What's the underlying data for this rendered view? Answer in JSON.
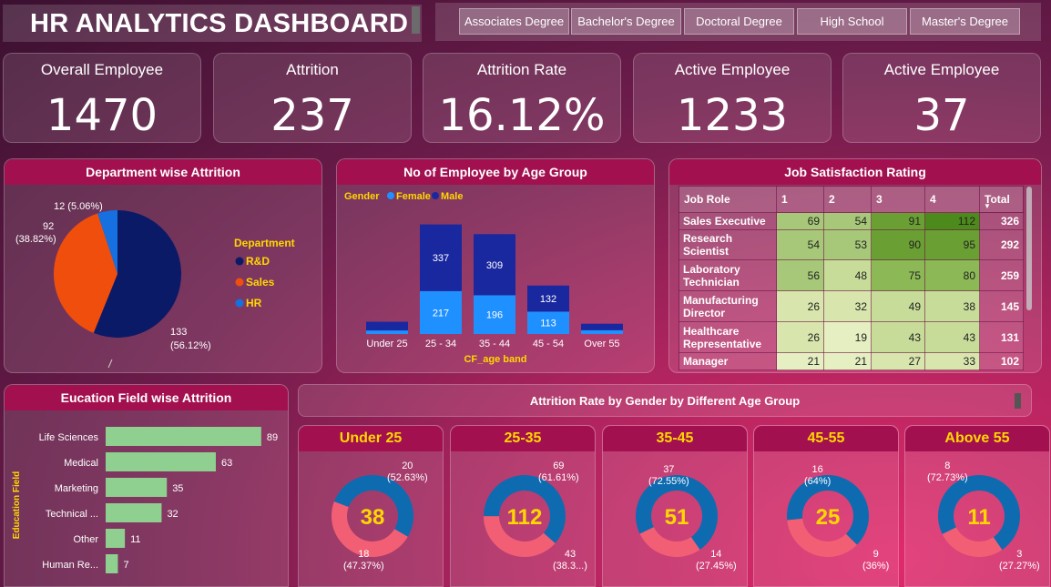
{
  "header": {
    "title": "HR ANALYTICS DASHBOARD",
    "education_filters": [
      "Associates Degree",
      "Bachelor's Degree",
      "Doctoral Degree",
      "High School",
      "Master's Degree"
    ]
  },
  "kpis": [
    {
      "label": "Overall Employee",
      "value": "1470"
    },
    {
      "label": "Attrition",
      "value": "237"
    },
    {
      "label": "Attrition Rate",
      "value": "16.12%"
    },
    {
      "label": "Active Employee",
      "value": "1233"
    },
    {
      "label": "Active Employee",
      "value": "37"
    }
  ],
  "colors": {
    "rd": "#0b1a66",
    "sales": "#f04e0c",
    "hr": "#1670e0",
    "female": "#1e90ff",
    "male": "#1a28a0",
    "donut_blue": "#0f6bb0",
    "donut_pink": "#f25f75",
    "accent_yellow": "#ffd700",
    "edu_bar": "#8fcf8f"
  },
  "dept_pie": {
    "title": "Department wise Attrition",
    "legend_title": "Department",
    "labels": {
      "hr": "12 (5.06%)",
      "sales_count": "92",
      "sales_pct": "(38.82%)",
      "rd_count": "133",
      "rd_pct": "(56.12%)"
    }
  },
  "age_chart": {
    "title": "No of Employee by Age Group",
    "legend_title": "Gender",
    "legend_female": "Female",
    "legend_male": "Male",
    "xlabel": "CF_age band"
  },
  "job_satisfaction": {
    "title": "Job Satisfaction Rating",
    "headers": [
      "Job Role",
      "1",
      "2",
      "3",
      "4",
      "Total"
    ]
  },
  "edu_chart": {
    "title": "Eucation Field wise Attrition",
    "ylabel": "Education Field"
  },
  "gender_age": {
    "title": "Attrition Rate by Gender by Different Age Group"
  },
  "donuts": [
    {
      "title": "Under 25",
      "center": "38",
      "top": "20",
      "top_pct": "(52.63%)",
      "bottom": "18",
      "bottom_pct": "(47.37%)"
    },
    {
      "title": "25-35",
      "center": "112",
      "top": "69",
      "top_pct": "(61.61%)",
      "bottom": "43",
      "bottom_pct": "(38.3...)"
    },
    {
      "title": "35-45",
      "center": "51",
      "top": "37",
      "top_pct": "(72.55%)",
      "bottom": "14",
      "bottom_pct": "(27.45%)"
    },
    {
      "title": "45-55",
      "center": "25",
      "top": "16",
      "top_pct": "(64%)",
      "bottom": "9",
      "bottom_pct": "(36%)"
    },
    {
      "title": "Above 55",
      "center": "11",
      "top": "8",
      "top_pct": "(72.73%)",
      "bottom": "3",
      "bottom_pct": "(27.27%)"
    }
  ],
  "chart_data": [
    {
      "type": "pie",
      "title": "Department wise Attrition",
      "categories": [
        "R&D",
        "Sales",
        "HR"
      ],
      "values": [
        133,
        92,
        12
      ],
      "legend": "right"
    },
    {
      "type": "bar",
      "title": "No of Employee by Age Group",
      "xlabel": "CF_age band",
      "categories": [
        "Under 25",
        "25 - 34",
        "35 - 44",
        "45 - 54",
        "Over 55"
      ],
      "series": [
        {
          "name": "Female",
          "values": [
            null,
            217,
            196,
            113,
            null
          ],
          "approx_values": [
            18,
            217,
            196,
            113,
            19
          ]
        },
        {
          "name": "Male",
          "values": [
            null,
            337,
            309,
            132,
            null
          ],
          "approx_values": [
            44,
            337,
            309,
            132,
            33
          ]
        }
      ],
      "stacked": true,
      "ylim": [
        0,
        560
      ],
      "legend": "top-left"
    },
    {
      "type": "table",
      "title": "Job Satisfaction Rating",
      "columns": [
        "Job Role",
        "1",
        "2",
        "3",
        "4",
        "Total"
      ],
      "rows": [
        [
          "Sales Executive",
          69,
          54,
          91,
          112,
          326
        ],
        [
          "Research Scientist",
          54,
          53,
          90,
          95,
          292
        ],
        [
          "Laboratory Technician",
          56,
          48,
          75,
          80,
          259
        ],
        [
          "Manufacturing Director",
          26,
          32,
          49,
          38,
          145
        ],
        [
          "Healthcare Representative",
          26,
          19,
          43,
          43,
          131
        ],
        [
          "Manager",
          21,
          21,
          27,
          33,
          102
        ]
      ]
    },
    {
      "type": "bar",
      "orientation": "horizontal",
      "title": "Eucation Field wise Attrition",
      "ylabel": "Education Field",
      "categories": [
        "Life Sciences",
        "Medical",
        "Marketing",
        "Technical ...",
        "Other",
        "Human Re..."
      ],
      "values": [
        89,
        63,
        35,
        32,
        11,
        7
      ]
    },
    {
      "type": "pie",
      "title": "Attrition Rate by Gender by Different Age Group",
      "donut": true,
      "groups": [
        {
          "name": "Under 25",
          "total": 38,
          "values": [
            20,
            18
          ]
        },
        {
          "name": "25-35",
          "total": 112,
          "values": [
            69,
            43
          ]
        },
        {
          "name": "35-45",
          "total": 51,
          "values": [
            37,
            14
          ]
        },
        {
          "name": "45-55",
          "total": 25,
          "values": [
            16,
            9
          ]
        },
        {
          "name": "Above 55",
          "total": 11,
          "values": [
            8,
            3
          ]
        }
      ]
    }
  ]
}
